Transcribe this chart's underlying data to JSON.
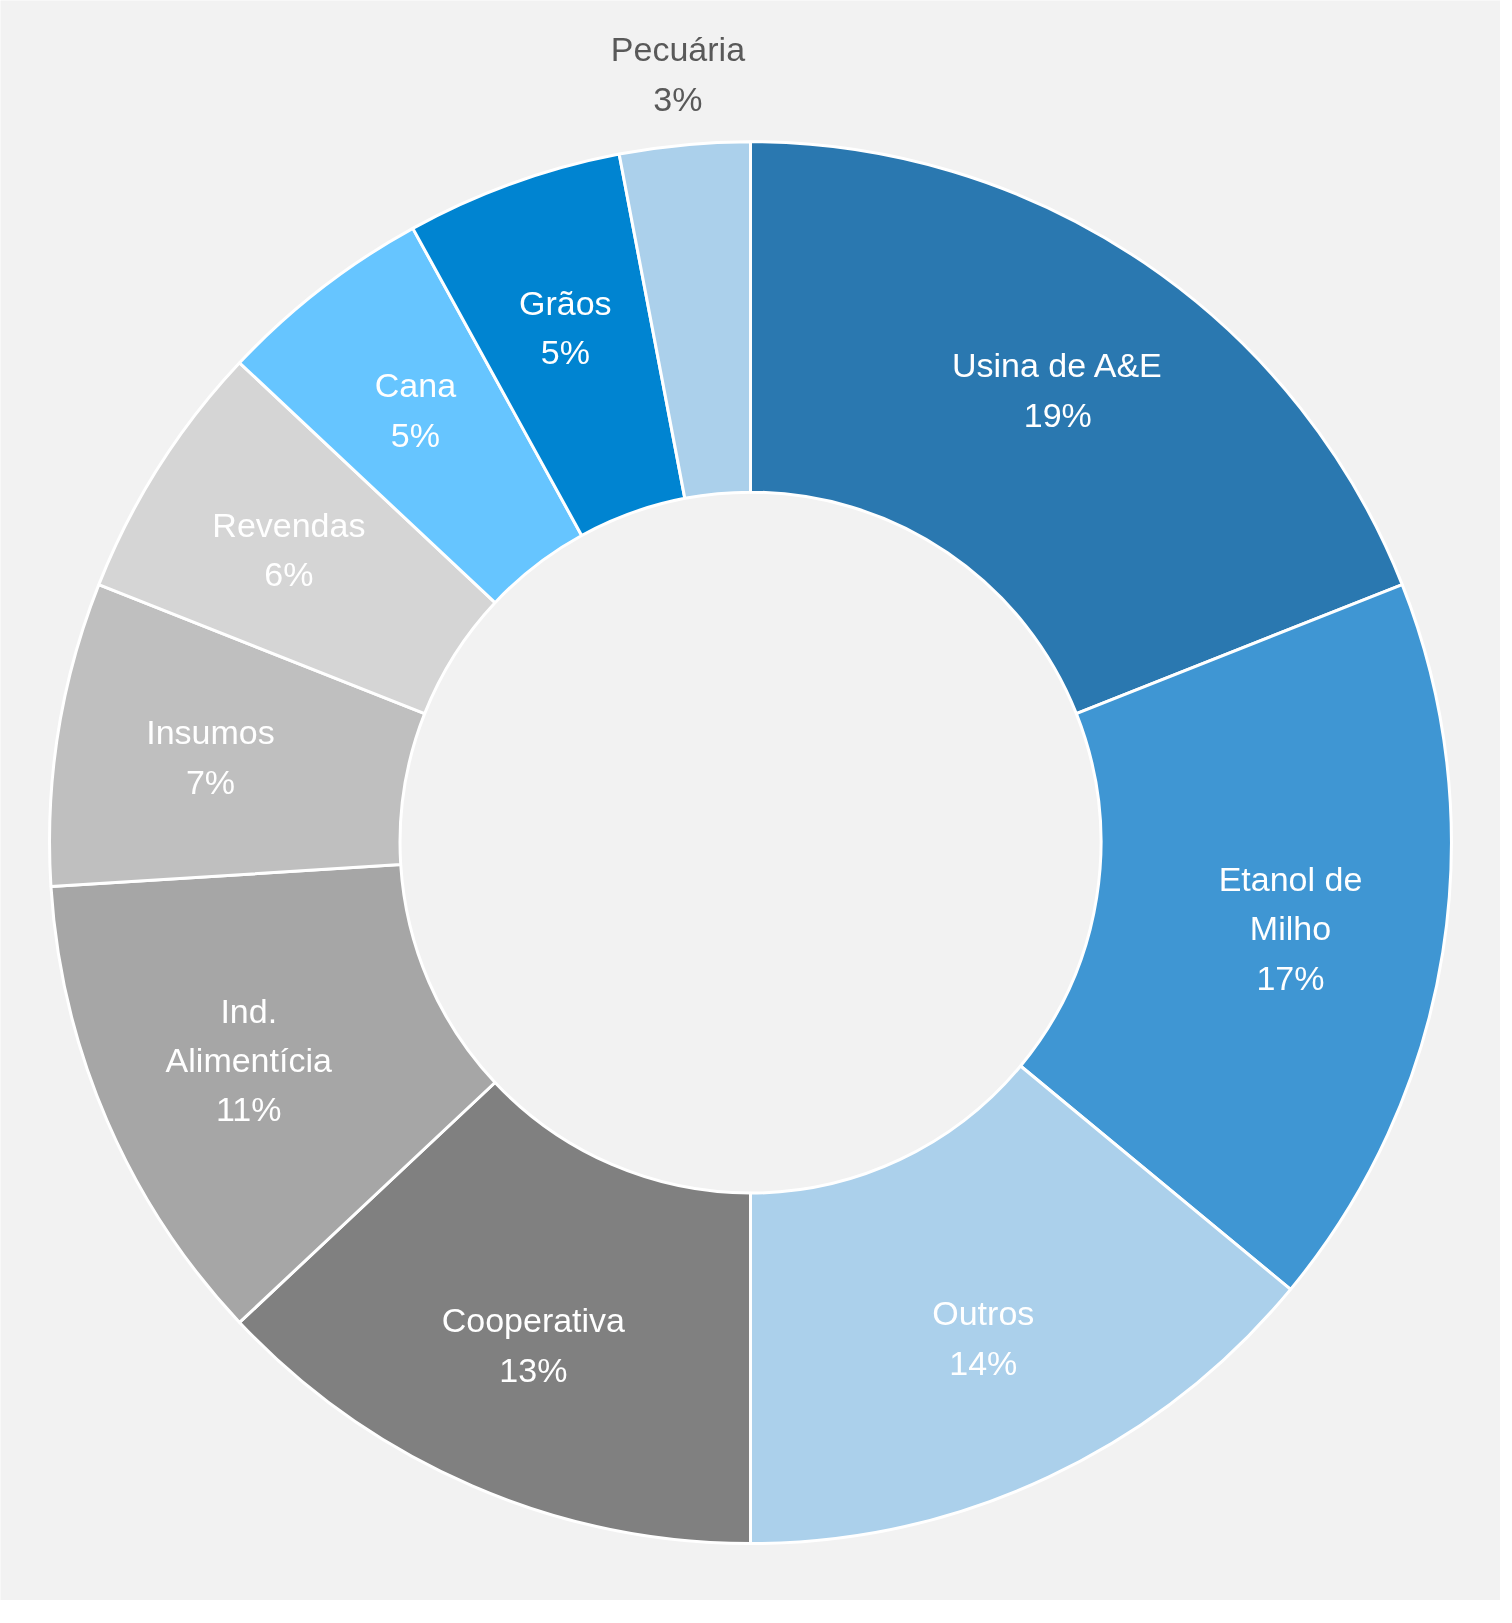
{
  "chart_data": {
    "type": "donut",
    "categories": [
      "Usina de A&E",
      "Etanol de Milho",
      "Outros",
      "Cooperativa",
      "Ind. Alimentícia",
      "Insumos",
      "Revendas",
      "Cana",
      "Grãos",
      "Pecuária"
    ],
    "values": [
      19,
      17,
      14,
      13,
      11,
      7,
      6,
      5,
      5,
      3
    ],
    "value_labels": [
      "19%",
      "17%",
      "14%",
      "13%",
      "11%",
      "7%",
      "6%",
      "5%",
      "5%",
      "3%"
    ],
    "colors": [
      "#2a78b0",
      "#3f96d3",
      "#abd0eb",
      "#808080",
      "#a6a6a6",
      "#bfbfbf",
      "#d5d5d5",
      "#66c5ff",
      "#0084d1",
      "#abd0eb"
    ]
  }
}
